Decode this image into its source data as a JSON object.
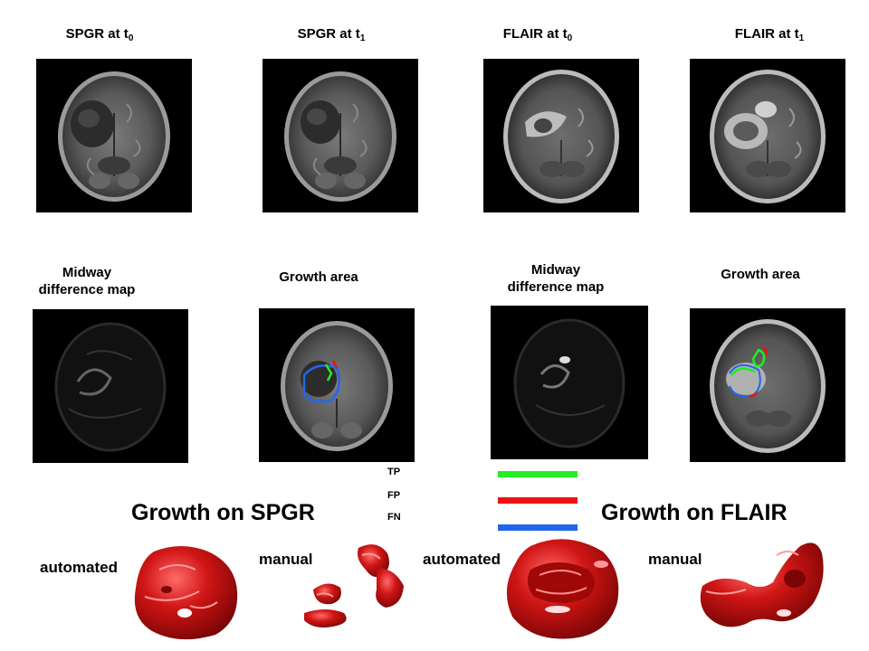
{
  "top_row": [
    {
      "base": "SPGR at t",
      "sub": "0"
    },
    {
      "base": "SPGR at t",
      "sub": "1"
    },
    {
      "base": "FLAIR at t",
      "sub": "0"
    },
    {
      "base": "FLAIR at t",
      "sub": "1"
    }
  ],
  "bottom_row": [
    {
      "line1": "Midway",
      "line2": "difference map"
    },
    {
      "line1": "Growth area",
      "line2": ""
    },
    {
      "line1": "Midway",
      "line2": "difference map"
    },
    {
      "line1": "Growth area",
      "line2": ""
    }
  ],
  "legend": [
    {
      "label": "TP",
      "color": "#22ee22"
    },
    {
      "label": "FP",
      "color": "#ee1111"
    },
    {
      "label": "FN",
      "color": "#2266ee"
    }
  ],
  "growth_titles": {
    "spgr": "Growth on SPGR",
    "flair": "Growth on FLAIR"
  },
  "render_labels": [
    "automated",
    "manual",
    "automated",
    "manual"
  ],
  "colors": {
    "render_red": "#cc1111",
    "render_highlight": "#ff7777"
  }
}
